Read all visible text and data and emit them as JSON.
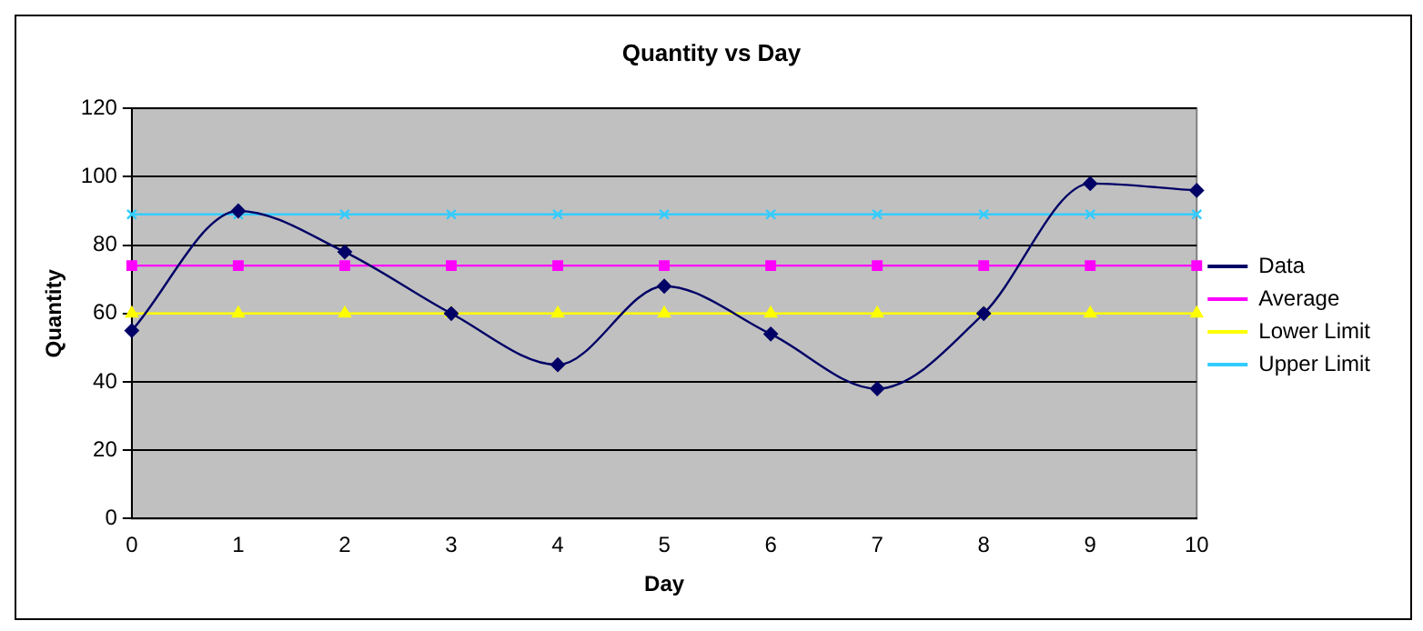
{
  "chart_data": {
    "type": "line",
    "title": "Quantity vs Day",
    "xlabel": "Day",
    "ylabel": "Quantity",
    "categories": [
      "0",
      "1",
      "2",
      "3",
      "4",
      "5",
      "6",
      "7",
      "8",
      "9",
      "10"
    ],
    "series": [
      {
        "name": "Data",
        "color": "#000066",
        "marker": "diamond",
        "values": [
          55,
          90,
          78,
          60,
          45,
          68,
          54,
          38,
          60,
          98,
          96
        ]
      },
      {
        "name": "Average",
        "color": "#ff00ff",
        "marker": "square",
        "values": [
          74,
          74,
          74,
          74,
          74,
          74,
          74,
          74,
          74,
          74,
          74
        ]
      },
      {
        "name": "Lower Limit",
        "color": "#ffff00",
        "marker": "triangle",
        "values": [
          60,
          60,
          60,
          60,
          60,
          60,
          60,
          60,
          60,
          60,
          60
        ]
      },
      {
        "name": "Upper Limit",
        "color": "#33ccff",
        "marker": "cross",
        "values": [
          89,
          89,
          89,
          89,
          89,
          89,
          89,
          89,
          89,
          89,
          89
        ]
      }
    ],
    "ylim": [
      0,
      120
    ],
    "yticks": [
      0,
      20,
      40,
      60,
      80,
      100,
      120
    ],
    "grid": "y",
    "legend": "right"
  }
}
